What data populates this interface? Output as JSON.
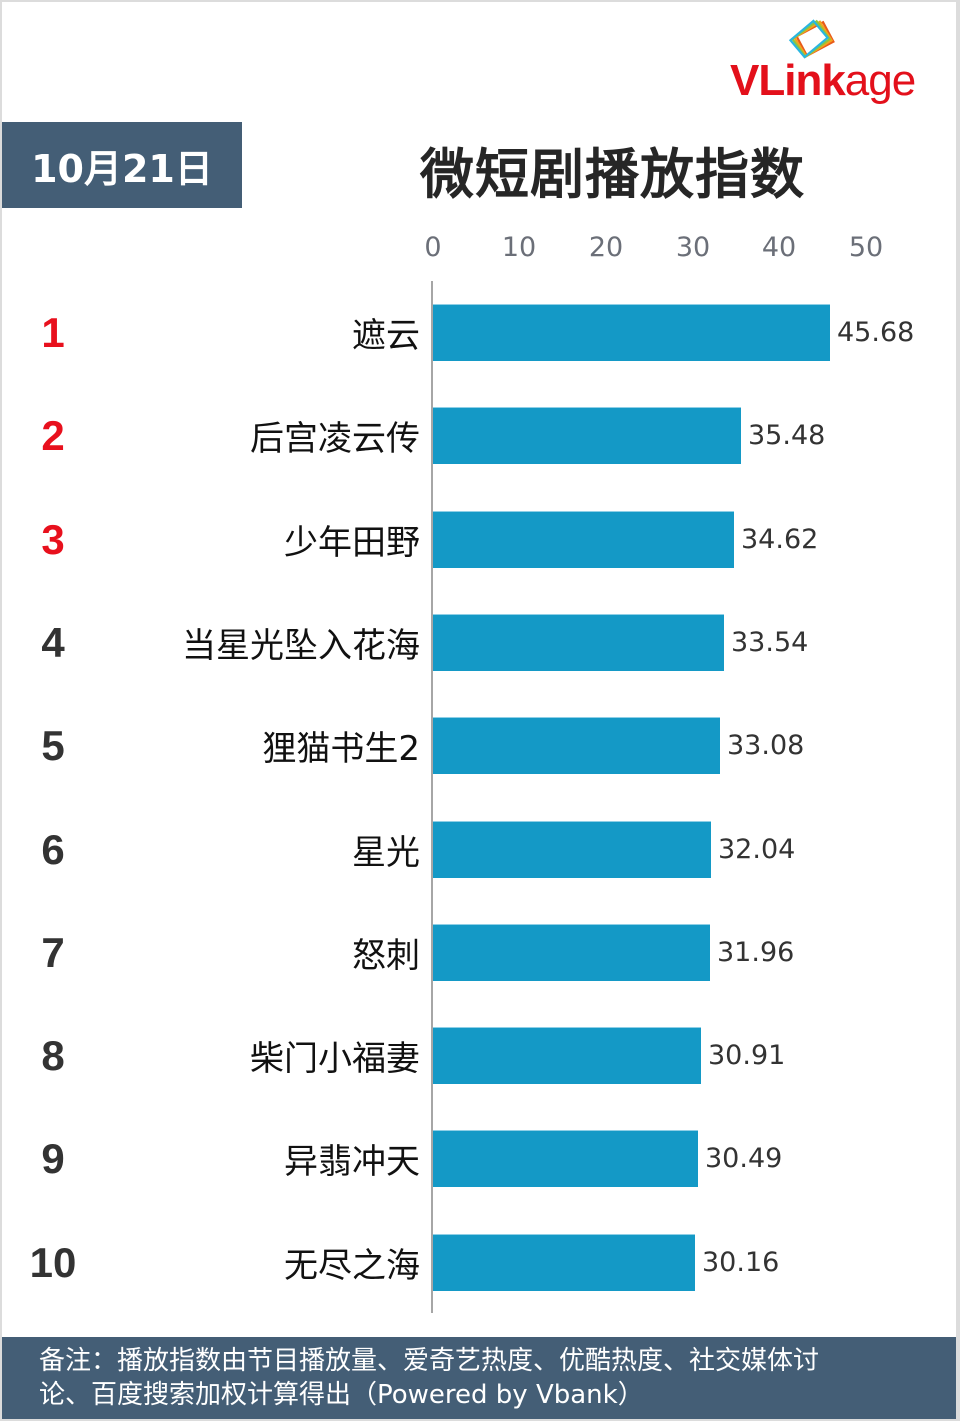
{
  "header": {
    "logo_text_bold": "VLink",
    "logo_text_light": "age",
    "date": "10月21日",
    "title": "微短剧播放指数"
  },
  "axis": {
    "ticks": [
      "0",
      "10",
      "20",
      "30",
      "40",
      "50"
    ]
  },
  "colors": {
    "bar": "#1499c6",
    "header_box": "#445e76",
    "top_rank": "#e8101d",
    "logo": "#e3101b"
  },
  "rows": [
    {
      "rank": "1",
      "name": "遮云",
      "value": "45.68"
    },
    {
      "rank": "2",
      "name": "后宫凌云传",
      "value": "35.48"
    },
    {
      "rank": "3",
      "name": "少年田野",
      "value": "34.62"
    },
    {
      "rank": "4",
      "name": "当星光坠入花海",
      "value": "33.54"
    },
    {
      "rank": "5",
      "name": "狸猫书生2",
      "value": "33.08"
    },
    {
      "rank": "6",
      "name": "星光",
      "value": "32.04"
    },
    {
      "rank": "7",
      "name": "怒刺",
      "value": "31.96"
    },
    {
      "rank": "8",
      "name": "柴门小福妻",
      "value": "30.91"
    },
    {
      "rank": "9",
      "name": "异翡冲天",
      "value": "30.49"
    },
    {
      "rank": "10",
      "name": "无尽之海",
      "value": "30.16"
    }
  ],
  "footer": {
    "line1": "备注：播放指数由节目播放量、爱奇艺热度、优酷热度、社交媒体讨",
    "line2": "论、百度搜索加权计算得出（Powered by Vbank）"
  },
  "chart_data": {
    "type": "bar",
    "orientation": "horizontal",
    "title": "微短剧播放指数",
    "subtitle": "10月21日",
    "categories": [
      "遮云",
      "后宫凌云传",
      "少年田野",
      "当星光坠入花海",
      "狸猫书生2",
      "星光",
      "怒刺",
      "柴门小福妻",
      "异翡冲天",
      "无尽之海"
    ],
    "values": [
      45.68,
      35.48,
      34.62,
      33.54,
      33.08,
      32.04,
      31.96,
      30.91,
      30.49,
      30.16
    ],
    "ranks": [
      1,
      2,
      3,
      4,
      5,
      6,
      7,
      8,
      9,
      10
    ],
    "xlabel": "",
    "ylabel": "",
    "xlim": [
      0,
      50
    ],
    "xticks": [
      0,
      10,
      20,
      30,
      40,
      50
    ],
    "axis_position": "top",
    "grid": false,
    "legend": null,
    "data_labels": true,
    "annotation": "备注：播放指数由节目播放量、爱奇艺热度、优酷热度、社交媒体讨论、百度搜索加权计算得出（Powered by Vbank）"
  }
}
